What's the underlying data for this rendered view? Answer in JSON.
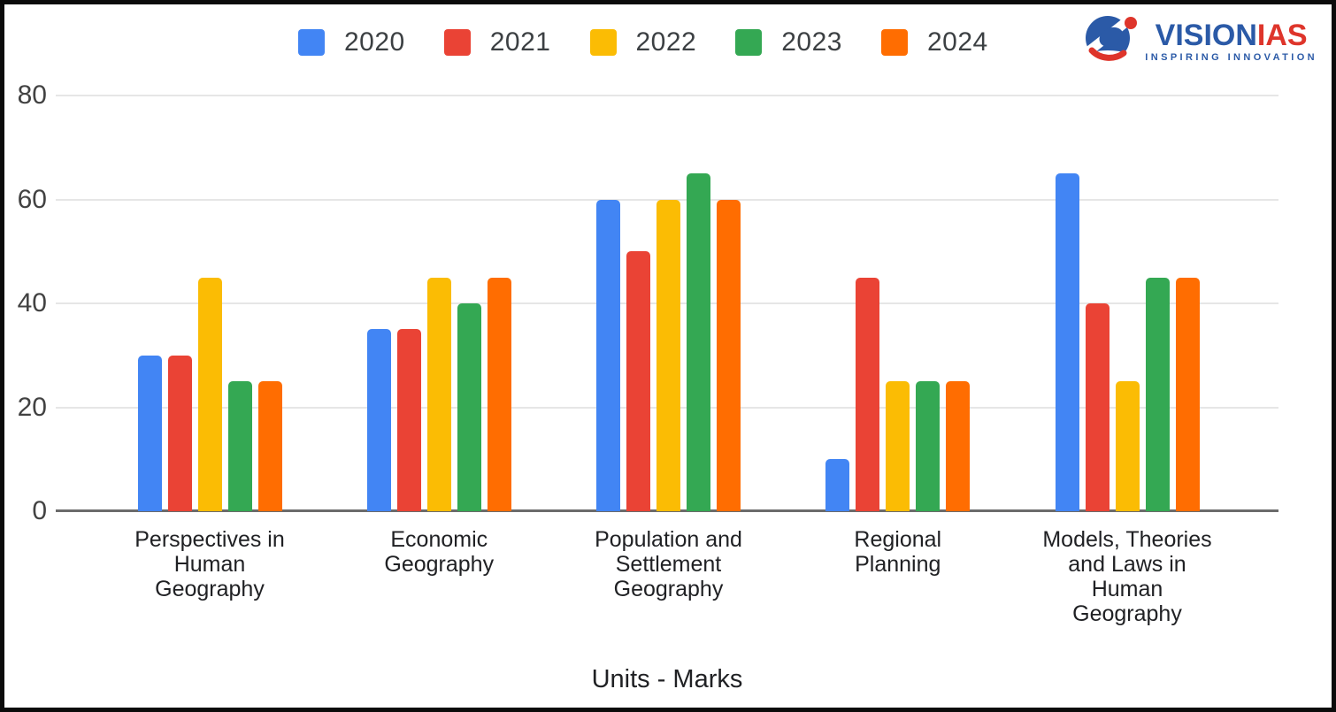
{
  "legend": {
    "items": [
      {
        "label": "2020",
        "color": "#4285F4"
      },
      {
        "label": "2021",
        "color": "#EA4335"
      },
      {
        "label": "2022",
        "color": "#FBBC04"
      },
      {
        "label": "2023",
        "color": "#34A853"
      },
      {
        "label": "2024",
        "color": "#FF6D01"
      }
    ]
  },
  "logo": {
    "brand_primary": "VISION",
    "brand_secondary": "IAS",
    "tagline": "INSPIRING INNOVATION",
    "primary_color": "#2B5AA7",
    "secondary_color": "#DE352B"
  },
  "chart_data": {
    "type": "bar",
    "title": "",
    "xlabel": "Units - Marks",
    "ylabel": "",
    "ylim": [
      0,
      80
    ],
    "yticks": [
      0,
      20,
      40,
      60,
      80
    ],
    "grid": true,
    "legend_position": "top",
    "categories": [
      "Perspectives in\nHuman\nGeography",
      "Economic\nGeography",
      "Population and\nSettlement\nGeography",
      "Regional\nPlanning",
      "Models, Theories\nand Laws in\nHuman\nGeography"
    ],
    "series": [
      {
        "name": "2020",
        "color": "#4285F4",
        "values": [
          30,
          35,
          60,
          10,
          65
        ]
      },
      {
        "name": "2021",
        "color": "#EA4335",
        "values": [
          30,
          35,
          50,
          45,
          40
        ]
      },
      {
        "name": "2022",
        "color": "#FBBC04",
        "values": [
          45,
          45,
          60,
          25,
          25
        ]
      },
      {
        "name": "2023",
        "color": "#34A853",
        "values": [
          25,
          40,
          65,
          25,
          45
        ]
      },
      {
        "name": "2024",
        "color": "#FF6D01",
        "values": [
          25,
          45,
          60,
          25,
          45
        ]
      }
    ]
  }
}
